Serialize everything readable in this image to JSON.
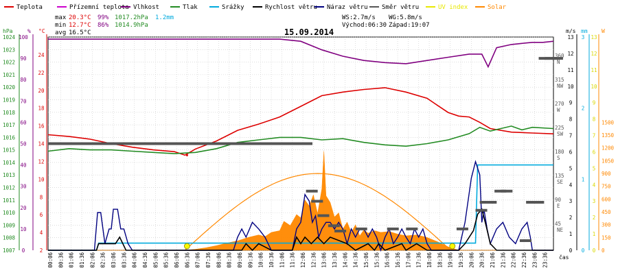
{
  "chart_data": {
    "type": "line",
    "title": "15.09.2014",
    "legend": [
      {
        "name": "Teplota",
        "color": "#dd0000"
      },
      {
        "name": "Přízemní teplota",
        "color": "#cc00cc"
      },
      {
        "name": "Vlhkost",
        "color": "#800080"
      },
      {
        "name": "Tlak",
        "color": "#228b22"
      },
      {
        "name": "Srážky",
        "color": "#00aadd"
      },
      {
        "name": "Rychlost větru",
        "color": "#000000"
      },
      {
        "name": "Náraz větru",
        "color": "#000080"
      },
      {
        "name": "Směr větru",
        "color": "#555555"
      },
      {
        "name": "UV index",
        "color": "#e8e800"
      },
      {
        "name": "Solar",
        "color": "#ff8800"
      }
    ],
    "stats": {
      "max": {
        "label": "max",
        "temp": "20.3°C",
        "hum": "99%",
        "press": "1017.2hPa",
        "rain": "1.2mm"
      },
      "min": {
        "label": "min",
        "temp": "12.7°C",
        "hum": "86%",
        "press": "1014.9hPa"
      },
      "avg": {
        "label": "avg",
        "temp": "16.5°C"
      }
    },
    "wind_info": {
      "ws": "WS:2.7m/s",
      "wg": "WG:5.8m/s"
    },
    "sun_info": {
      "rise": "Východ:06:30",
      "set": "Západ:19:07"
    },
    "axes": {
      "hpa": {
        "label": "hPa",
        "ticks": [
          "1024",
          "1023",
          "1022",
          "1021",
          "1020",
          "1019",
          "1018",
          "1017",
          "1016",
          "1015",
          "1014",
          "1013",
          "1012",
          "1011",
          "1010",
          "1009",
          "1008",
          "1007"
        ],
        "range": [
          1007,
          1024
        ]
      },
      "pct": {
        "label": "%",
        "ticks": [
          "100",
          "90",
          "80",
          "70",
          "60",
          "50",
          "40",
          "30",
          "20",
          "10",
          "0"
        ],
        "range": [
          0,
          100
        ]
      },
      "celsius": {
        "label": "°C",
        "ticks": [
          "24",
          "22",
          "20",
          "18",
          "16",
          "14",
          "12",
          "10",
          "8",
          "6",
          "4",
          "2"
        ],
        "range": [
          2,
          26
        ]
      },
      "ms": {
        "label": "m/s",
        "ticks": [
          "13",
          "12",
          "11",
          "10",
          "9",
          "8",
          "7",
          "6",
          "5",
          "4",
          "3",
          "2",
          "1",
          "0"
        ],
        "range": [
          0,
          13
        ]
      },
      "dir": {
        "ticks": [
          [
            "360",
            "N"
          ],
          [
            "315",
            "NW"
          ],
          [
            "270",
            "W"
          ],
          [
            "225",
            "SW"
          ],
          [
            "180",
            "S"
          ],
          [
            "135",
            "SE"
          ],
          [
            "90",
            "E"
          ],
          [
            "45",
            "NE"
          ]
        ]
      },
      "mm": {
        "label": "mm",
        "ticks": [
          "3",
          "2",
          "1",
          "0"
        ],
        "range": [
          0,
          3
        ]
      },
      "uv": {
        "ticks": [
          "13",
          "12",
          "11",
          "10",
          "9",
          "8",
          "7",
          "6",
          "5",
          "4",
          "3",
          "2",
          "1",
          "0"
        ]
      },
      "wm2": {
        "label": "W",
        "ticks": [
          "1500",
          "1350",
          "1200",
          "1050",
          "900",
          "750",
          "600",
          "450",
          "300",
          "150",
          "0"
        ],
        "range": [
          0,
          1500
        ]
      }
    },
    "x_ticks": [
      "00:06",
      "00:36",
      "01:06",
      "01:36",
      "02:06",
      "02:36",
      "03:06",
      "03:36",
      "04:06",
      "04:36",
      "05:06",
      "05:36",
      "06:06",
      "06:36",
      "07:06",
      "07:36",
      "08:06",
      "08:36",
      "09:06",
      "09:36",
      "10:06",
      "10:36",
      "11:06",
      "11:36",
      "12:06",
      "12:36",
      "13:06",
      "13:36",
      "14:06",
      "14:36",
      "15:06",
      "15:36",
      "16:06",
      "16:36",
      "17:06",
      "17:36",
      "18:06",
      "18:36",
      "19:06",
      "19:36",
      "20:06",
      "20:36",
      "21:06",
      "21:36",
      "22:06",
      "22:36",
      "23:06",
      "23:36"
    ],
    "x_label": "čas",
    "x_range": [
      0,
      24
    ],
    "series": {
      "humidity": {
        "unit": "%",
        "x": [
          0,
          3,
          5,
          8,
          11,
          12,
          13,
          14,
          15,
          16,
          17,
          18,
          19,
          20,
          20.6,
          20.9,
          21.3,
          22,
          22.5,
          23,
          23.5,
          24
        ],
        "y": [
          99,
          99,
          99,
          99,
          99,
          98,
          94,
          91,
          89,
          88,
          87.5,
          89,
          90.5,
          92,
          92,
          86,
          95,
          96.5,
          97,
          97.5,
          97.5,
          98
        ]
      },
      "temperature": {
        "unit": "°C",
        "x": [
          0,
          1,
          2,
          3,
          4,
          5,
          6,
          6.5,
          7,
          8,
          9,
          10,
          11,
          12,
          13,
          14,
          15,
          16,
          17,
          18,
          18.5,
          19,
          19.5,
          20,
          20.5,
          21,
          22,
          23,
          24
        ],
        "y": [
          15,
          14.8,
          14.5,
          14,
          13.6,
          13.3,
          13.1,
          12.7,
          13.4,
          14.3,
          15.5,
          16.2,
          17,
          18.2,
          19.4,
          19.8,
          20.1,
          20.3,
          19.8,
          19.1,
          18.3,
          17.5,
          17.1,
          17,
          16.4,
          15.7,
          15.3,
          15.2,
          15.1
        ],
        "min_point": [
          6.6,
          12.7
        ]
      },
      "pressure": {
        "unit": "hPa",
        "x": [
          0,
          1,
          2,
          3,
          4,
          5,
          6,
          7,
          8,
          9,
          10,
          11,
          12,
          13,
          14,
          15,
          16,
          17,
          18,
          19,
          20,
          20.5,
          21,
          21.5,
          22,
          22.5,
          23,
          24
        ],
        "y": [
          1014.9,
          1015.1,
          1015.0,
          1015.0,
          1014.9,
          1014.8,
          1014.7,
          1014.8,
          1015.1,
          1015.6,
          1015.8,
          1016.0,
          1016.0,
          1015.8,
          1015.9,
          1015.6,
          1015.4,
          1015.3,
          1015.5,
          1015.8,
          1016.3,
          1016.8,
          1016.5,
          1016.7,
          1016.9,
          1016.6,
          1016.8,
          1016.7
        ]
      },
      "rain": {
        "unit": "mm",
        "x": [
          0,
          2.3,
          2.4,
          20.3,
          20.4,
          24
        ],
        "y": [
          0,
          0,
          0.1,
          0.1,
          1.2,
          1.2
        ]
      },
      "wind_speed": {
        "unit": "m/s",
        "x": [
          0,
          2.3,
          2.4,
          3.2,
          3.4,
          3.7,
          9.2,
          9.4,
          9.7,
          10.0,
          10.6,
          11.6,
          11.8,
          12.0,
          12.2,
          12.5,
          12.8,
          13.1,
          13.4,
          14.2,
          14.6,
          15.2,
          15.5,
          15.7,
          16,
          16.8,
          17,
          17.5,
          18,
          19.5,
          19.8,
          20.2,
          20.4,
          20.6,
          20.8,
          21.0,
          21.3,
          24
        ],
        "y": [
          0,
          0,
          0.4,
          0.4,
          0.8,
          0,
          0,
          0.4,
          0,
          0.4,
          0,
          0,
          0.8,
          0.4,
          0.8,
          0.4,
          0.8,
          0.4,
          0.8,
          0.4,
          0,
          0.4,
          0,
          0.4,
          0,
          0.4,
          0,
          0.4,
          0,
          0,
          0.4,
          1.2,
          2.2,
          2.5,
          1.5,
          0.4,
          0,
          0
        ]
      },
      "wind_gust": {
        "unit": "m/s",
        "x": [
          0,
          2.2,
          2.35,
          2.5,
          2.7,
          2.9,
          3.0,
          3.1,
          3.3,
          3.45,
          3.6,
          3.8,
          4.0,
          8.8,
          9.0,
          9.2,
          9.4,
          9.7,
          10.0,
          10.3,
          10.6,
          11.6,
          11.8,
          12.0,
          12.2,
          12.4,
          12.55,
          12.7,
          12.85,
          13.0,
          13.2,
          13.4,
          13.6,
          13.8,
          14.0,
          14.2,
          14.4,
          14.6,
          14.8,
          15.0,
          15.2,
          15.4,
          15.6,
          15.8,
          16.0,
          16.2,
          16.4,
          16.6,
          16.8,
          17.0,
          17.2,
          17.4,
          17.6,
          17.8,
          18.0,
          18.2,
          19.5,
          19.8,
          20.1,
          20.3,
          20.5,
          20.6,
          20.7,
          20.85,
          21.0,
          21.3,
          21.6,
          21.9,
          22.2,
          22.5,
          22.75,
          22.9,
          23.0,
          24
        ],
        "y": [
          0,
          0,
          2.3,
          2.3,
          0.4,
          1.3,
          1.3,
          2.5,
          2.5,
          1.3,
          1.3,
          0.4,
          0,
          0,
          0.8,
          1.3,
          0.8,
          1.7,
          1.3,
          0.8,
          0,
          0,
          1.3,
          1.7,
          3.4,
          3.0,
          1.7,
          2.1,
          0.8,
          1.3,
          1.7,
          1.7,
          1.3,
          1.7,
          1.3,
          0.4,
          1.3,
          0.8,
          1.3,
          1.3,
          0.8,
          1.3,
          0.8,
          0,
          0.8,
          1.3,
          0.4,
          0.8,
          1.3,
          0.8,
          0.4,
          1.3,
          0.8,
          1.3,
          0.4,
          0,
          0,
          1.7,
          4.4,
          5.4,
          4.6,
          1.7,
          2.5,
          1.3,
          0.4,
          1.3,
          1.7,
          0.8,
          0.4,
          1.3,
          1.7,
          0.8,
          0,
          0
        ]
      },
      "wind_dir": {
        "unit": "deg",
        "points": [
          [
            0,
            200
          ],
          [
            0.5,
            200
          ],
          [
            1,
            200
          ],
          [
            1.5,
            200
          ],
          [
            2,
            200
          ],
          [
            2.5,
            200
          ],
          [
            3,
            200
          ],
          [
            3.5,
            200
          ],
          [
            4,
            200
          ],
          [
            4.5,
            200
          ],
          [
            5,
            200
          ],
          [
            5.5,
            200
          ],
          [
            6,
            200
          ],
          [
            6.5,
            200
          ],
          [
            7,
            200
          ],
          [
            7.5,
            200
          ],
          [
            8,
            200
          ],
          [
            8.5,
            200
          ],
          [
            9,
            200
          ],
          [
            9.5,
            200
          ],
          [
            10,
            200
          ],
          [
            10.5,
            200
          ],
          [
            11,
            200
          ],
          [
            11.5,
            200
          ],
          [
            12,
            200
          ],
          [
            12.25,
            111
          ],
          [
            12.5,
            92
          ],
          [
            12.8,
            65
          ],
          [
            13.3,
            46
          ],
          [
            13.6,
            36
          ],
          [
            14.6,
            40
          ],
          [
            16.1,
            40
          ],
          [
            17.0,
            40
          ],
          [
            19.4,
            40
          ],
          [
            20.3,
            75
          ],
          [
            20.5,
            90
          ],
          [
            20.75,
            90
          ],
          [
            21.2,
            111
          ],
          [
            21.5,
            111
          ],
          [
            22.4,
            18
          ],
          [
            22.7,
            90
          ],
          [
            23.0,
            90
          ],
          [
            23.3,
            360
          ],
          [
            23.6,
            360
          ],
          [
            23.9,
            360
          ]
        ]
      },
      "solar": {
        "unit": "W/m2",
        "x": [
          0,
          6.5,
          7,
          7.5,
          8,
          8.5,
          9,
          9.5,
          10,
          10.3,
          10.6,
          11,
          11.2,
          11.5,
          11.8,
          12.0,
          12.2,
          12.4,
          12.6,
          12.8,
          13.0,
          13.1,
          13.2,
          13.4,
          13.6,
          13.8,
          14.0,
          14.2,
          14.4,
          14.6,
          14.8,
          15.0,
          15.2,
          15.5,
          15.8,
          16.2,
          16.6,
          17.0,
          17.5,
          18.0,
          18.5,
          19.0,
          19.5,
          24
        ],
        "y": [
          0,
          0,
          12,
          30,
          55,
          85,
          110,
          150,
          180,
          160,
          210,
          230,
          340,
          290,
          420,
          380,
          590,
          520,
          650,
          430,
          720,
          1160,
          640,
          560,
          390,
          440,
          250,
          330,
          210,
          300,
          170,
          240,
          200,
          230,
          210,
          220,
          190,
          170,
          180,
          150,
          100,
          40,
          0,
          0
        ]
      },
      "solar_theoretical": {
        "unit": "W/m2",
        "sunrise": 6.5,
        "sunset": 19.12,
        "peak": 900
      },
      "uv_points": {
        "x": [
          6.6,
          19.2
        ],
        "y": [
          0,
          0
        ]
      }
    }
  }
}
